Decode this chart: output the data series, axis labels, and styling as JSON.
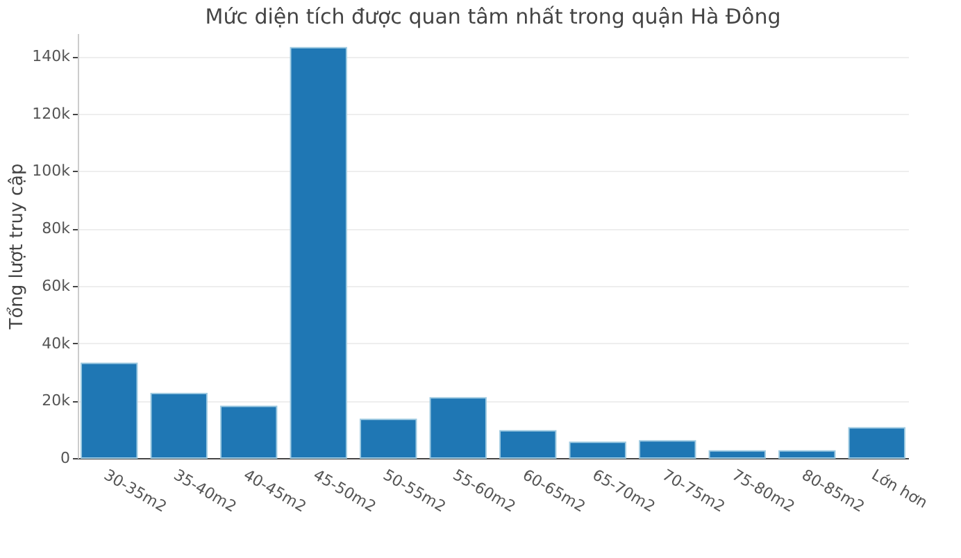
{
  "chart_data": {
    "type": "bar",
    "title": "Mức diện tích được quan tâm nhất trong quận Hà Đông",
    "ylabel": "Tổng lượt truy cập",
    "categories": [
      "30-35m2",
      "35-40m2",
      "40-45m2",
      "45-50m2",
      "50-55m2",
      "55-60m2",
      "60-65m2",
      "65-70m2",
      "70-75m2",
      "75-80m2",
      "80-85m2",
      "Lớn hơn"
    ],
    "values": [
      33000,
      22500,
      18000,
      143000,
      13500,
      21000,
      9500,
      5500,
      6000,
      2500,
      2500,
      10500
    ],
    "color": "#1f77b4",
    "ylim": [
      0,
      148000
    ],
    "yticks": [
      {
        "value": 0,
        "label": "0"
      },
      {
        "value": 20000,
        "label": "20k"
      },
      {
        "value": 40000,
        "label": "40k"
      },
      {
        "value": 60000,
        "label": "60k"
      },
      {
        "value": 80000,
        "label": "80k"
      },
      {
        "value": 100000,
        "label": "100k"
      },
      {
        "value": 120000,
        "label": "120k"
      },
      {
        "value": 140000,
        "label": "140k"
      }
    ],
    "grid": "y"
  }
}
